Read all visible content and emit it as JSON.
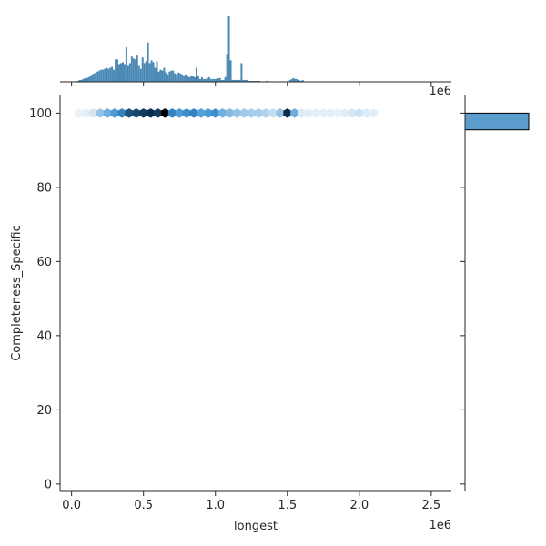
{
  "chart_data": {
    "type": "hexbin-joint",
    "joint": {
      "x_field": "longest",
      "y_field": "Completeness_Specific",
      "xlabel": "longest",
      "ylabel": "Completeness_Specific",
      "x_offset_label": "1e6",
      "xlim": [
        -0.08,
        2.64
      ],
      "ylim": [
        -2,
        105
      ],
      "x_ticks": [
        0,
        0.5,
        1.0,
        1.5,
        2.0,
        2.5
      ],
      "x_tick_labels": [
        "0.0",
        "0.5",
        "1.0",
        "1.5",
        "2.0",
        "2.5"
      ],
      "y_ticks": [
        0,
        20,
        40,
        60,
        80,
        100
      ],
      "y_tick_labels": [
        "0",
        "20",
        "40",
        "60",
        "80",
        "100"
      ],
      "hex_y": 100,
      "hex_x": [
        0.05,
        0.1,
        0.15,
        0.2,
        0.25,
        0.3,
        0.35,
        0.4,
        0.45,
        0.5,
        0.55,
        0.6,
        0.65,
        0.7,
        0.75,
        0.8,
        0.85,
        0.9,
        0.95,
        1.0,
        1.05,
        1.1,
        1.15,
        1.2,
        1.25,
        1.3,
        1.35,
        1.4,
        1.45,
        1.5,
        1.55,
        1.6,
        1.65,
        1.7,
        1.75,
        1.8,
        1.85,
        1.9,
        1.95,
        2.0,
        2.05,
        2.1
      ],
      "hex_density": [
        0.02,
        0.04,
        0.08,
        0.25,
        0.35,
        0.45,
        0.55,
        0.75,
        0.8,
        0.85,
        0.9,
        0.85,
        1.0,
        0.55,
        0.45,
        0.5,
        0.55,
        0.42,
        0.45,
        0.5,
        0.35,
        0.3,
        0.25,
        0.22,
        0.2,
        0.2,
        0.18,
        0.12,
        0.25,
        0.9,
        0.35,
        0.06,
        0.05,
        0.04,
        0.04,
        0.04,
        0.03,
        0.05,
        0.08,
        0.1,
        0.06,
        0.04
      ],
      "color_light": "#f2f7fc",
      "color_mid": "#3a8fd0",
      "color_dark": "#000000"
    },
    "marginal_x": {
      "type": "histogram",
      "bin_start": 0.0,
      "bin_width": 0.0125,
      "counts": [
        0,
        0,
        0,
        1,
        2,
        2,
        3,
        4,
        4,
        5,
        6,
        8,
        9,
        10,
        11,
        12,
        13,
        13,
        14,
        15,
        14,
        15,
        16,
        13,
        24,
        24,
        19,
        20,
        21,
        19,
        37,
        18,
        20,
        27,
        25,
        24,
        29,
        18,
        14,
        26,
        20,
        22,
        42,
        20,
        23,
        21,
        15,
        22,
        11,
        13,
        12,
        15,
        10,
        8,
        11,
        12,
        12,
        9,
        8,
        10,
        9,
        8,
        7,
        8,
        6,
        5,
        6,
        6,
        5,
        15,
        6,
        3,
        5,
        3,
        3,
        4,
        5,
        3,
        3,
        3,
        3,
        4,
        4,
        2,
        2,
        5,
        30,
        70,
        23,
        2,
        2,
        2,
        2,
        2,
        20,
        2,
        2,
        2,
        1,
        1,
        1,
        1,
        1,
        1,
        1,
        0,
        0,
        0,
        1,
        0,
        0,
        0,
        0,
        0,
        0,
        0,
        0,
        0,
        0,
        0,
        0,
        2,
        3,
        4,
        3,
        3,
        2,
        1,
        2,
        0,
        0,
        0,
        0,
        0,
        0,
        0,
        0,
        0,
        0,
        0,
        0,
        0,
        0,
        0,
        0,
        0,
        0,
        0,
        0,
        0,
        0,
        0,
        0,
        0,
        0,
        0,
        0,
        0,
        0,
        0,
        0,
        0,
        0,
        0,
        0,
        0,
        0,
        0,
        0,
        0,
        0,
        0,
        0,
        0,
        0,
        0,
        0,
        0,
        0,
        0,
        0,
        0,
        0,
        0,
        0,
        0,
        0,
        0,
        0,
        0,
        0,
        0,
        0,
        0,
        0,
        0,
        0,
        0,
        0,
        0
      ],
      "color": "#4a89b5"
    },
    "marginal_y": {
      "type": "histogram",
      "bins": [
        [
          95.5,
          100
        ]
      ],
      "counts": [
        1
      ],
      "color": "#5a9dcc"
    }
  }
}
